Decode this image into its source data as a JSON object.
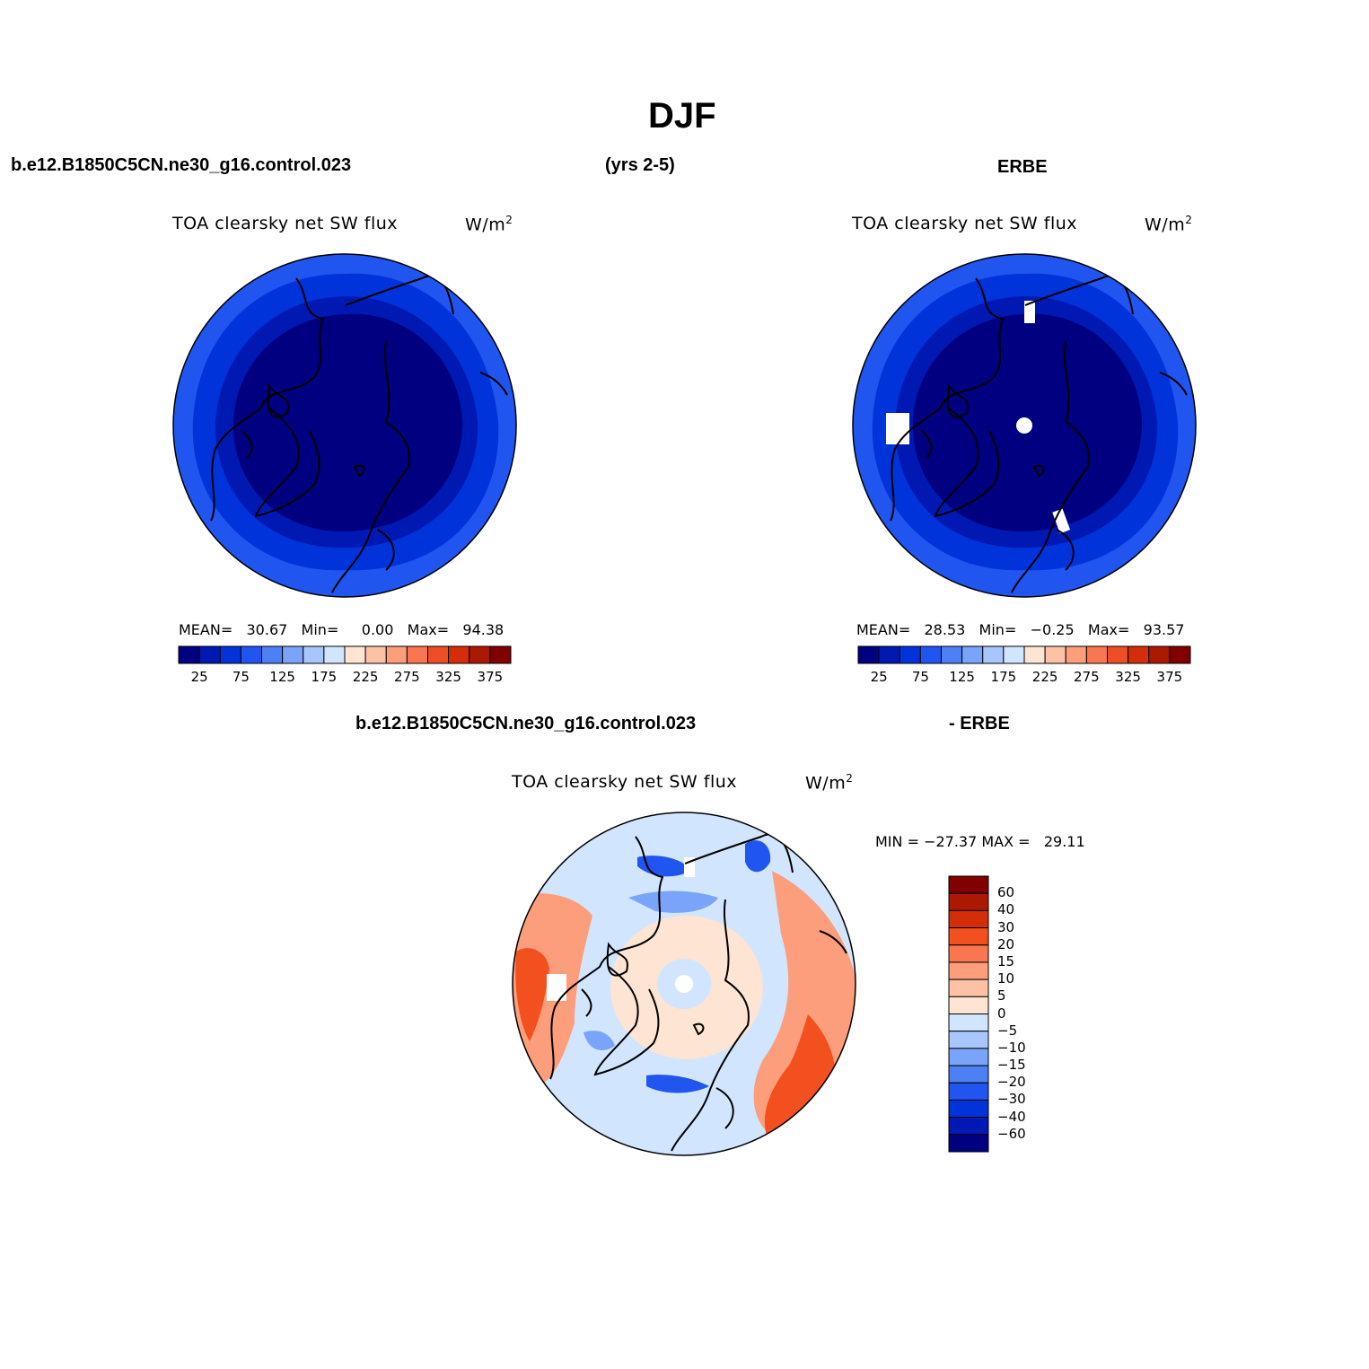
{
  "figure": {
    "season": "DJF",
    "case_name": "b.e12.B1850C5CN.ne30_g16.control.023",
    "years": "(yrs 2-5)",
    "obs_name": "ERBE",
    "diff_case_name": "b.e12.B1850C5CN.ne30_g16.control.023",
    "diff_obs_name": "- ERBE"
  },
  "panels": {
    "model": {
      "title": "TOA clearsky net SW flux",
      "units": "W/m",
      "units_sup": "2",
      "stats": "MEAN=   30.67   Min=     0.00   Max=   94.38"
    },
    "obs": {
      "title": "TOA clearsky net SW flux",
      "units": "W/m",
      "units_sup": "2",
      "stats": "MEAN=   28.53   Min=   −0.25   Max=   93.57"
    },
    "diff": {
      "title": "TOA clearsky net SW flux",
      "units": "W/m",
      "units_sup": "2",
      "stats": "MIN = −27.37 MAX =   29.11"
    }
  },
  "colorbar_abs": {
    "colors": [
      "#000080",
      "#0019b2",
      "#0033d9",
      "#2155f0",
      "#4d7ff5",
      "#7aa3fa",
      "#a8c5fc",
      "#d2e5fe",
      "#fee4d2",
      "#fdc2a6",
      "#fc9e7c",
      "#f97650",
      "#ee4e26",
      "#d42d0a",
      "#ab1a00",
      "#800000"
    ],
    "labels": [
      "25",
      "75",
      "125",
      "175",
      "225",
      "275",
      "325",
      "375"
    ]
  },
  "colorbar_diff": {
    "colors": [
      "#800000",
      "#ab1a00",
      "#d42d0a",
      "#f35020",
      "#f97650",
      "#fc9e7c",
      "#fdc2a6",
      "#fee4d2",
      "#d2e5fe",
      "#a8c5fc",
      "#7aa3fa",
      "#4d7ff5",
      "#2155f0",
      "#0033d9",
      "#0019b2",
      "#000080"
    ],
    "labels": [
      "60",
      "40",
      "30",
      "20",
      "15",
      "10",
      "5",
      "0",
      "−5",
      "−10",
      "−15",
      "−20",
      "−30",
      "−40",
      "−60"
    ]
  },
  "map_colors": {
    "abs_outer": "#2155f0",
    "abs_mid": "#0033d9",
    "abs_inner": "#0019b2",
    "abs_core": "#000080",
    "diff_base": "#d2e5fe",
    "diff_warm_light": "#fee4d2",
    "diff_warm_mid": "#fc9e7c",
    "diff_warm_strong": "#f35020",
    "diff_cool_mid": "#7aa3fa",
    "diff_cool_strong": "#2155f0"
  }
}
